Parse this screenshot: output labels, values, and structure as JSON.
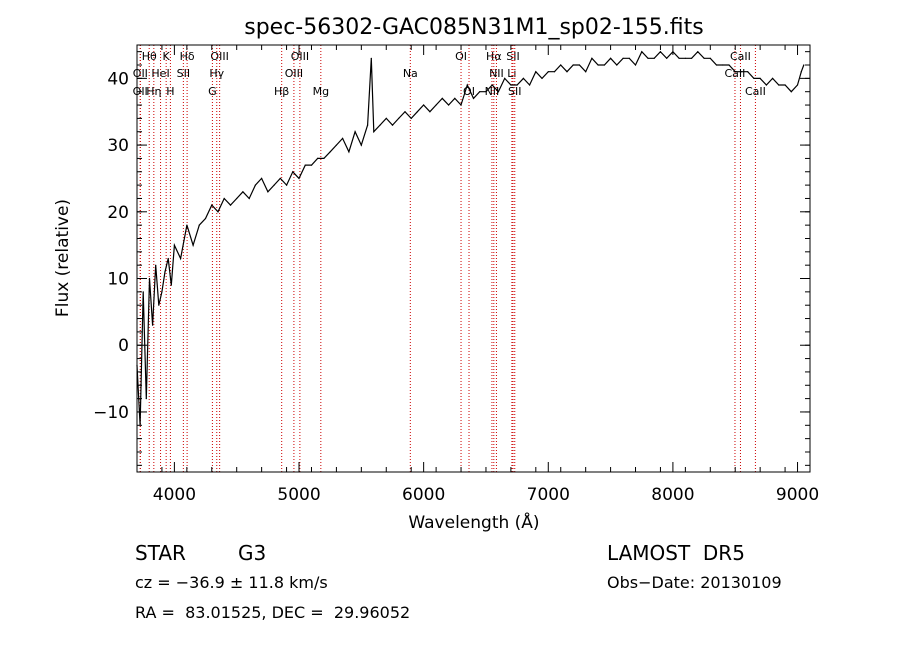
{
  "chart_data": {
    "type": "line",
    "title": "spec-56302-GAC085N31M1_sp02-155.fits",
    "xlabel": "Wavelength (Å)",
    "ylabel": "Flux (relative)",
    "xlim": [
      3700,
      9100
    ],
    "ylim": [
      -19,
      45
    ],
    "xticks": [
      4000,
      5000,
      6000,
      7000,
      8000,
      9000
    ],
    "yticks": [
      -10,
      0,
      10,
      20,
      30,
      40
    ],
    "grid": false,
    "line_color": "#000000",
    "marker_color": "#cc0000",
    "series": [
      {
        "x": [
          3700,
          3725,
          3750,
          3775,
          3800,
          3825,
          3850,
          3875,
          3900,
          3925,
          3950,
          3975,
          4000,
          4050,
          4100,
          4150,
          4200,
          4250,
          4300,
          4350,
          4400,
          4450,
          4500,
          4550,
          4600,
          4650,
          4700,
          4750,
          4800,
          4850,
          4900,
          4950,
          5000,
          5050,
          5100,
          5150,
          5200,
          5250,
          5300,
          5350,
          5400,
          5450,
          5500,
          5550,
          5580,
          5600,
          5650,
          5700,
          5750,
          5800,
          5850,
          5900,
          5950,
          6000,
          6050,
          6100,
          6150,
          6200,
          6250,
          6300,
          6350,
          6400,
          6450,
          6500,
          6550,
          6600,
          6650,
          6700,
          6750,
          6800,
          6850,
          6900,
          6950,
          7000,
          7050,
          7100,
          7150,
          7200,
          7250,
          7300,
          7350,
          7400,
          7450,
          7500,
          7550,
          7600,
          7650,
          7700,
          7750,
          7800,
          7850,
          7900,
          7950,
          8000,
          8050,
          8100,
          8150,
          8200,
          8250,
          8300,
          8350,
          8400,
          8450,
          8500,
          8550,
          8600,
          8650,
          8700,
          8750,
          8800,
          8850,
          8900,
          8950,
          9000,
          9030,
          9050
        ],
        "y": [
          -3,
          -12,
          8,
          -8,
          10,
          3,
          12,
          6,
          8,
          11,
          13,
          9,
          15,
          13,
          18,
          15,
          18,
          19,
          21,
          20,
          22,
          21,
          22,
          23,
          22,
          24,
          25,
          23,
          24,
          25,
          24,
          26,
          25,
          27,
          27,
          28,
          28,
          29,
          30,
          31,
          29,
          32,
          30,
          33,
          43,
          32,
          33,
          34,
          33,
          34,
          35,
          34,
          35,
          36,
          35,
          36,
          37,
          36,
          37,
          36,
          39,
          37,
          38,
          38,
          39,
          38,
          40,
          39,
          39,
          40,
          39,
          41,
          40,
          41,
          41,
          42,
          41,
          42,
          42,
          41,
          43,
          42,
          42,
          43,
          42,
          43,
          43,
          42,
          44,
          43,
          43,
          44,
          43,
          44,
          43,
          43,
          43,
          44,
          43,
          43,
          42,
          42,
          42,
          41,
          41,
          41,
          40,
          40,
          39,
          40,
          39,
          39,
          38,
          39,
          41,
          42
        ]
      }
    ],
    "lines": [
      {
        "label": "Hθ",
        "wl": 3798
      },
      {
        "label": "K",
        "wl": 3934
      },
      {
        "label": "Hδ",
        "wl": 4102
      },
      {
        "label": "OIII",
        "wl": 4363
      },
      {
        "label": "OIII",
        "wl": 5007
      },
      {
        "label": "OI",
        "wl": 6300
      },
      {
        "label": "Hα",
        "wl": 6563
      },
      {
        "label": "SII",
        "wl": 6717
      },
      {
        "label": "CaII",
        "wl": 8542
      },
      {
        "label": "OII",
        "wl": 3727
      },
      {
        "label": "HeI",
        "wl": 3889
      },
      {
        "label": "SII",
        "wl": 4072
      },
      {
        "label": "Hγ",
        "wl": 4340
      },
      {
        "label": "OIII",
        "wl": 4959
      },
      {
        "label": "Na",
        "wl": 5893
      },
      {
        "label": "NII",
        "wl": 6584
      },
      {
        "label": "Li",
        "wl": 6708
      },
      {
        "label": "CaII",
        "wl": 8498
      },
      {
        "label": "OII",
        "wl": 3726
      },
      {
        "label": "Hη",
        "wl": 3835
      },
      {
        "label": "H",
        "wl": 3968
      },
      {
        "label": "G",
        "wl": 4305
      },
      {
        "label": "Hβ",
        "wl": 4861
      },
      {
        "label": "Mg",
        "wl": 5175
      },
      {
        "label": "OI",
        "wl": 6364
      },
      {
        "label": "NII",
        "wl": 6548
      },
      {
        "label": "SII",
        "wl": 6731
      },
      {
        "label": "CaII",
        "wl": 8662
      }
    ]
  },
  "info": {
    "object_class": "STAR",
    "subclass": "G3",
    "survey": "LAMOST  DR5",
    "cz": "cz = −36.9 ± 11.8 km/s",
    "obs_date": "Obs−Date: 20130109",
    "coords": "RA =  83.01525, DEC =  29.96052"
  }
}
